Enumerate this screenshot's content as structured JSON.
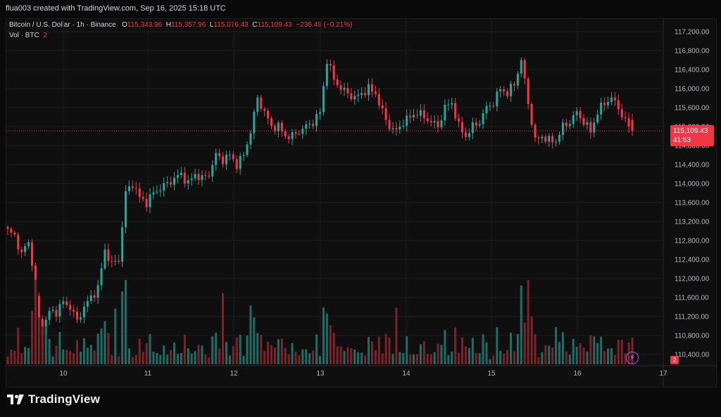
{
  "header": {
    "text": "flua003 created with TradingView.com, Sep 16, 2025 15:18 UTC"
  },
  "legend": {
    "symbol": "Bitcoin / U.S. Dollar · 1h · Binance",
    "open_label": "O",
    "open": "115,343.96",
    "high_label": "H",
    "high": "115,357.96",
    "low_label": "L",
    "low": "115,076.43",
    "close_label": "C",
    "close": "115,109.43",
    "change": "−236.48 (−0.21%)",
    "vol_label": "Vol · BTC",
    "vol_value": "2"
  },
  "price_tag": {
    "price": "115,109.43",
    "countdown": "41:53"
  },
  "vol_tag": "2",
  "logo": {
    "text": "TradingView"
  },
  "colors": {
    "up": "#26a69a",
    "down": "#f23645",
    "up_vol": "#1f6b66",
    "down_vol": "#7a2328",
    "grid": "#1c1c1c",
    "axis_text": "#b2b5be"
  },
  "chart_data": {
    "type": "candlestick",
    "symbol": "BTCUSD",
    "timeframe": "1h",
    "exchange": "Binance",
    "ylim": [
      110100,
      117400
    ],
    "y_ticks": [
      "117,200.00",
      "116,800.00",
      "116,400.00",
      "116,000.00",
      "115,600.00",
      "115,200.00",
      "114,800.00",
      "114,400.00",
      "114,000.00",
      "113,600.00",
      "113,200.00",
      "112,800.00",
      "112,400.00",
      "112,000.00",
      "111,600.00",
      "111,200.00",
      "110,800.00",
      "110,400.00"
    ],
    "x_labels": [
      "10",
      "11",
      "12",
      "13",
      "14",
      "15",
      "16",
      "17"
    ],
    "candle_hours": 181,
    "series": [
      {
        "name": "close_path",
        "values": [
          [
            0,
            113000
          ],
          [
            2,
            112900
          ],
          [
            4,
            112500
          ],
          [
            6,
            112800
          ],
          [
            7,
            112300
          ],
          [
            8,
            111600
          ],
          [
            9,
            111100
          ],
          [
            10,
            110900
          ],
          [
            12,
            111300
          ],
          [
            14,
            111300
          ],
          [
            16,
            111500
          ],
          [
            18,
            111400
          ],
          [
            20,
            111100
          ],
          [
            22,
            111400
          ],
          [
            24,
            111600
          ],
          [
            26,
            111800
          ],
          [
            28,
            112600
          ],
          [
            30,
            112300
          ],
          [
            32,
            112400
          ],
          [
            34,
            113800
          ],
          [
            36,
            114000
          ],
          [
            38,
            113700
          ],
          [
            40,
            113600
          ],
          [
            42,
            113800
          ],
          [
            44,
            113900
          ],
          [
            46,
            114000
          ],
          [
            48,
            114100
          ],
          [
            50,
            114200
          ],
          [
            52,
            114000
          ],
          [
            54,
            114200
          ],
          [
            56,
            114100
          ],
          [
            58,
            114200
          ],
          [
            60,
            114600
          ],
          [
            62,
            114500
          ],
          [
            64,
            114600
          ],
          [
            66,
            114400
          ],
          [
            68,
            114600
          ],
          [
            70,
            115100
          ],
          [
            72,
            115800
          ],
          [
            74,
            115500
          ],
          [
            76,
            115200
          ],
          [
            78,
            115200
          ],
          [
            80,
            115000
          ],
          [
            82,
            115000
          ],
          [
            84,
            115100
          ],
          [
            86,
            115200
          ],
          [
            88,
            115300
          ],
          [
            90,
            115500
          ],
          [
            92,
            116600
          ],
          [
            94,
            116200
          ],
          [
            96,
            116000
          ],
          [
            98,
            115900
          ],
          [
            100,
            115800
          ],
          [
            102,
            115900
          ],
          [
            104,
            116000
          ],
          [
            106,
            115900
          ],
          [
            108,
            115500
          ],
          [
            110,
            115200
          ],
          [
            112,
            115100
          ],
          [
            114,
            115300
          ],
          [
            116,
            115400
          ],
          [
            118,
            115500
          ],
          [
            120,
            115400
          ],
          [
            122,
            115300
          ],
          [
            124,
            115200
          ],
          [
            126,
            115600
          ],
          [
            128,
            115700
          ],
          [
            130,
            115200
          ],
          [
            132,
            115000
          ],
          [
            134,
            115200
          ],
          [
            136,
            115300
          ],
          [
            138,
            115600
          ],
          [
            140,
            115700
          ],
          [
            142,
            116000
          ],
          [
            144,
            115900
          ],
          [
            146,
            116100
          ],
          [
            148,
            116600
          ],
          [
            150,
            115700
          ],
          [
            152,
            114900
          ],
          [
            154,
            115000
          ],
          [
            156,
            114900
          ],
          [
            158,
            114900
          ],
          [
            160,
            115200
          ],
          [
            162,
            115300
          ],
          [
            164,
            115500
          ],
          [
            166,
            115300
          ],
          [
            168,
            115100
          ],
          [
            170,
            115500
          ],
          [
            172,
            115700
          ],
          [
            174,
            115800
          ],
          [
            176,
            115600
          ],
          [
            178,
            115300
          ],
          [
            180,
            115109
          ]
        ]
      }
    ]
  }
}
